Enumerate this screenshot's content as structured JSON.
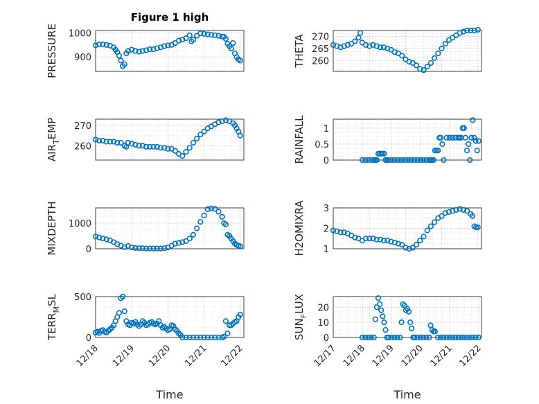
{
  "figure_title": "Figure 1 high",
  "colors": {
    "marker": "#0072BD",
    "axis": "#262626"
  },
  "chart_data": [
    {
      "type": "scatter",
      "ylabel_parts": [
        "PRESSURE"
      ],
      "ylim": [
        840,
        1010
      ],
      "yticks": [
        900,
        1000
      ],
      "yticklabels": [
        "900",
        "1000"
      ],
      "xlim": [
        18.0,
        22.1
      ],
      "x": [
        18.0,
        18.1,
        18.2,
        18.3,
        18.4,
        18.5,
        18.55,
        18.6,
        18.65,
        18.7,
        18.75,
        18.8,
        18.85,
        18.9,
        19.0,
        19.1,
        19.2,
        19.3,
        19.4,
        19.5,
        19.6,
        19.7,
        19.8,
        19.9,
        20.0,
        20.1,
        20.2,
        20.3,
        20.4,
        20.5,
        20.6,
        20.65,
        20.7,
        20.8,
        20.9,
        21.0,
        21.1,
        21.2,
        21.3,
        21.4,
        21.5,
        21.55,
        21.6,
        21.65,
        21.7,
        21.75,
        21.8,
        21.85,
        21.9,
        21.95,
        22.0
      ],
      "y": [
        948,
        952,
        952,
        950,
        947,
        940,
        930,
        920,
        905,
        885,
        862,
        870,
        915,
        925,
        930,
        925,
        922,
        925,
        928,
        932,
        932,
        936,
        940,
        945,
        948,
        950,
        958,
        968,
        972,
        978,
        990,
        965,
        972,
        988,
        998,
        996,
        994,
        992,
        990,
        988,
        985,
        984,
        975,
        955,
        945,
        935,
        958,
        915,
        900,
        890,
        885
      ]
    },
    {
      "type": "scatter",
      "ylabel_parts": [
        "THETA"
      ],
      "ylim": [
        255.5,
        272.5
      ],
      "yticks": [
        260,
        265,
        270
      ],
      "yticklabels": [
        "260",
        "265",
        "270"
      ],
      "xlim": [
        18.0,
        22.1
      ],
      "x": [
        18.0,
        18.1,
        18.2,
        18.3,
        18.4,
        18.5,
        18.6,
        18.7,
        18.75,
        18.8,
        18.9,
        19.0,
        19.1,
        19.2,
        19.3,
        19.4,
        19.5,
        19.6,
        19.7,
        19.8,
        19.9,
        20.0,
        20.1,
        20.2,
        20.3,
        20.4,
        20.5,
        20.6,
        20.7,
        20.8,
        20.9,
        21.0,
        21.1,
        21.2,
        21.3,
        21.4,
        21.5,
        21.6,
        21.7,
        21.8,
        21.9,
        22.0
      ],
      "y": [
        266.5,
        266,
        265.5,
        266,
        266.5,
        267,
        268,
        269.5,
        271.5,
        267.5,
        266.5,
        266,
        266.5,
        266,
        265.5,
        265.5,
        265,
        264.5,
        263.5,
        263,
        262,
        260.5,
        259.5,
        259,
        258,
        256.5,
        256,
        257.5,
        259,
        261,
        263,
        265,
        267,
        268.5,
        269.5,
        270.5,
        271.5,
        272,
        272.5,
        272.5,
        272.5,
        272.8
      ]
    },
    {
      "type": "scatter",
      "ylabel_parts": [
        "AIR",
        "T",
        "EMP"
      ],
      "ylim": [
        253,
        273
      ],
      "yticks": [
        260,
        270
      ],
      "yticklabels": [
        "260",
        "270"
      ],
      "xlim": [
        18.0,
        22.1
      ],
      "x": [
        18.0,
        18.1,
        18.2,
        18.3,
        18.4,
        18.5,
        18.6,
        18.7,
        18.8,
        18.85,
        18.9,
        19.0,
        19.1,
        19.2,
        19.3,
        19.4,
        19.5,
        19.6,
        19.7,
        19.8,
        19.9,
        20.0,
        20.1,
        20.2,
        20.3,
        20.4,
        20.5,
        20.6,
        20.7,
        20.8,
        20.9,
        21.0,
        21.1,
        21.2,
        21.3,
        21.4,
        21.5,
        21.6,
        21.7,
        21.8,
        21.85,
        21.9,
        21.95,
        22.0
      ],
      "y": [
        263,
        262.5,
        262.5,
        262,
        262,
        262,
        261.5,
        261.5,
        260,
        259.5,
        261.5,
        261,
        260.5,
        260,
        260,
        259.5,
        259.5,
        259.5,
        259.5,
        259,
        259,
        258.5,
        258.5,
        257.5,
        256,
        255,
        257,
        259,
        261.5,
        263.5,
        265.5,
        267,
        268.5,
        269.5,
        270.5,
        271.5,
        272,
        272.5,
        272,
        271,
        270,
        268.5,
        267,
        265
      ]
    },
    {
      "type": "scatter",
      "ylabel_parts": [
        "RAINFALL"
      ],
      "ylim": [
        0,
        1.28
      ],
      "yticks": [
        0,
        0.5,
        1
      ],
      "yticklabels": [
        "0",
        "0.5",
        "1"
      ],
      "xlim": [
        17.0,
        22.1
      ],
      "x": [
        18.0,
        18.1,
        18.2,
        18.3,
        18.4,
        18.45,
        18.5,
        18.55,
        18.6,
        18.65,
        18.7,
        18.75,
        18.8,
        18.85,
        18.9,
        19.0,
        19.1,
        19.2,
        19.3,
        19.4,
        19.5,
        19.6,
        19.7,
        19.8,
        19.9,
        20.0,
        20.1,
        20.2,
        20.3,
        20.35,
        20.4,
        20.45,
        20.5,
        20.55,
        20.6,
        20.65,
        20.7,
        20.75,
        20.8,
        20.9,
        21.0,
        21.1,
        21.2,
        21.3,
        21.35,
        21.4,
        21.45,
        21.5,
        21.55,
        21.6,
        21.65,
        21.7,
        21.75,
        21.8,
        21.85,
        21.9,
        21.95,
        22.0
      ],
      "y": [
        0,
        0,
        0,
        0,
        0,
        0,
        0,
        0.2,
        0.2,
        0.2,
        0.2,
        0.2,
        0,
        0,
        0,
        0,
        0,
        0,
        0,
        0,
        0,
        0,
        0,
        0,
        0,
        0,
        0,
        0,
        0,
        0,
        0,
        0,
        0.3,
        0.3,
        0.3,
        0.7,
        0.7,
        0.5,
        0,
        0.7,
        0.7,
        0.7,
        0.7,
        0.7,
        0.7,
        0.7,
        1.0,
        1.0,
        0.7,
        0.3,
        0.5,
        0,
        0.7,
        1.25,
        0.7,
        0.6,
        0.3,
        0.6
      ]
    },
    {
      "type": "scatter",
      "ylabel_parts": [
        "MIXDEPTH"
      ],
      "ylim": [
        0,
        1600
      ],
      "yticks": [
        0,
        1000
      ],
      "yticklabels": [
        "0",
        "1000"
      ],
      "xlim": [
        18.0,
        22.1
      ],
      "x": [
        18.0,
        18.1,
        18.2,
        18.3,
        18.4,
        18.5,
        18.6,
        18.7,
        18.8,
        18.9,
        19.0,
        19.1,
        19.2,
        19.3,
        19.4,
        19.5,
        19.6,
        19.7,
        19.8,
        19.9,
        20.0,
        20.1,
        20.2,
        20.3,
        20.4,
        20.5,
        20.6,
        20.7,
        20.8,
        20.9,
        21.0,
        21.1,
        21.2,
        21.3,
        21.4,
        21.5,
        21.55,
        21.6,
        21.65,
        21.7,
        21.75,
        21.8,
        21.85,
        21.9,
        21.95,
        22.0
      ],
      "y": [
        480,
        440,
        400,
        370,
        330,
        260,
        180,
        120,
        60,
        110,
        50,
        30,
        20,
        20,
        10,
        10,
        10,
        10,
        10,
        20,
        50,
        120,
        200,
        230,
        260,
        300,
        400,
        550,
        800,
        1050,
        1300,
        1550,
        1580,
        1560,
        1450,
        1250,
        1000,
        950,
        550,
        500,
        400,
        300,
        200,
        150,
        120,
        100
      ]
    },
    {
      "type": "scatter",
      "ylabel_parts": [
        "H2OMIXRA"
      ],
      "ylim": [
        1,
        3
      ],
      "yticks": [
        1,
        2,
        3
      ],
      "yticklabels": [
        "1",
        "2",
        "3"
      ],
      "xlim": [
        18.0,
        22.1
      ],
      "x": [
        18.0,
        18.1,
        18.2,
        18.3,
        18.4,
        18.5,
        18.6,
        18.7,
        18.8,
        18.9,
        19.0,
        19.1,
        19.2,
        19.3,
        19.4,
        19.5,
        19.6,
        19.7,
        19.8,
        19.9,
        20.0,
        20.1,
        20.2,
        20.3,
        20.4,
        20.5,
        20.6,
        20.7,
        20.8,
        20.9,
        21.0,
        21.1,
        21.2,
        21.3,
        21.4,
        21.5,
        21.6,
        21.7,
        21.8,
        21.85,
        21.9,
        21.95,
        22.0
      ],
      "y": [
        1.9,
        1.85,
        1.8,
        1.8,
        1.75,
        1.65,
        1.55,
        1.5,
        1.4,
        1.5,
        1.5,
        1.5,
        1.45,
        1.45,
        1.4,
        1.4,
        1.35,
        1.3,
        1.25,
        1.2,
        1.05,
        1.0,
        1.05,
        1.2,
        1.4,
        1.6,
        1.9,
        2.1,
        2.3,
        2.5,
        2.6,
        2.75,
        2.8,
        2.85,
        2.9,
        2.95,
        2.9,
        2.85,
        2.7,
        2.6,
        2.1,
        2.05,
        2.05
      ]
    },
    {
      "type": "scatter",
      "ylabel_parts": [
        "TERR",
        "M",
        "SL"
      ],
      "ylim": [
        0,
        500
      ],
      "yticks": [
        0,
        500
      ],
      "yticklabels": [
        "0",
        "500"
      ],
      "xlim": [
        18.0,
        22.1
      ],
      "x": [
        18.0,
        18.05,
        18.1,
        18.15,
        18.2,
        18.25,
        18.3,
        18.35,
        18.4,
        18.45,
        18.5,
        18.55,
        18.6,
        18.65,
        18.7,
        18.75,
        18.8,
        18.85,
        18.9,
        18.95,
        19.0,
        19.05,
        19.1,
        19.15,
        19.2,
        19.25,
        19.3,
        19.35,
        19.4,
        19.45,
        19.5,
        19.55,
        19.6,
        19.65,
        19.7,
        19.75,
        19.8,
        19.85,
        19.9,
        19.95,
        20.0,
        20.05,
        20.1,
        20.15,
        20.2,
        20.25,
        20.3,
        20.35,
        20.4,
        20.5,
        20.6,
        20.7,
        20.8,
        20.9,
        21.0,
        21.1,
        21.2,
        21.3,
        21.4,
        21.5,
        21.55,
        21.6,
        21.65,
        21.7,
        21.75,
        21.8,
        21.85,
        21.9,
        21.95,
        22.0
      ],
      "y": [
        60,
        70,
        55,
        80,
        90,
        70,
        60,
        80,
        100,
        120,
        150,
        200,
        250,
        300,
        480,
        500,
        320,
        200,
        160,
        150,
        180,
        170,
        190,
        160,
        140,
        160,
        200,
        180,
        150,
        160,
        180,
        190,
        170,
        160,
        170,
        200,
        150,
        120,
        130,
        110,
        90,
        100,
        150,
        140,
        100,
        80,
        50,
        30,
        0,
        0,
        0,
        0,
        0,
        0,
        0,
        0,
        0,
        0,
        0,
        0,
        10,
        200,
        50,
        150,
        150,
        170,
        190,
        200,
        250,
        280
      ]
    },
    {
      "type": "scatter",
      "ylabel_parts": [
        "SUN",
        "F",
        "LUX"
      ],
      "ylim": [
        0,
        27
      ],
      "yticks": [
        0,
        10,
        20
      ],
      "yticklabels": [
        "0",
        "10",
        "20"
      ],
      "xlim": [
        17.0,
        22.1
      ],
      "x": [
        18.0,
        18.1,
        18.2,
        18.3,
        18.4,
        18.45,
        18.5,
        18.55,
        18.6,
        18.65,
        18.7,
        18.75,
        18.8,
        18.85,
        18.9,
        19.0,
        19.1,
        19.2,
        19.3,
        19.35,
        19.4,
        19.45,
        19.5,
        19.55,
        19.6,
        19.65,
        19.7,
        19.75,
        19.8,
        19.9,
        20.0,
        20.1,
        20.2,
        20.3,
        20.35,
        20.4,
        20.45,
        20.5,
        20.6,
        20.7,
        20.8,
        20.9,
        21.0,
        21.1,
        21.2,
        21.3,
        21.4,
        21.5,
        21.6,
        21.7,
        21.8,
        21.9,
        22.0
      ],
      "y": [
        0,
        0,
        0,
        0,
        0,
        12,
        20,
        26,
        22,
        18,
        14,
        10,
        5,
        0,
        0,
        0,
        0,
        0,
        0,
        10,
        22,
        21,
        18,
        19,
        17,
        10,
        6,
        0,
        0,
        0,
        0,
        0,
        0,
        0,
        8,
        5,
        4,
        4,
        0,
        0,
        0,
        0,
        0,
        0,
        0,
        0,
        0,
        0,
        0,
        0,
        0,
        0,
        0
      ]
    }
  ],
  "x_axis": {
    "ticks": [
      17,
      18,
      19,
      20,
      21,
      22
    ],
    "ticklabels": [
      "12/17",
      "12/18",
      "12/19",
      "12/20",
      "12/21",
      "12/22"
    ],
    "xlabel": "Time"
  }
}
